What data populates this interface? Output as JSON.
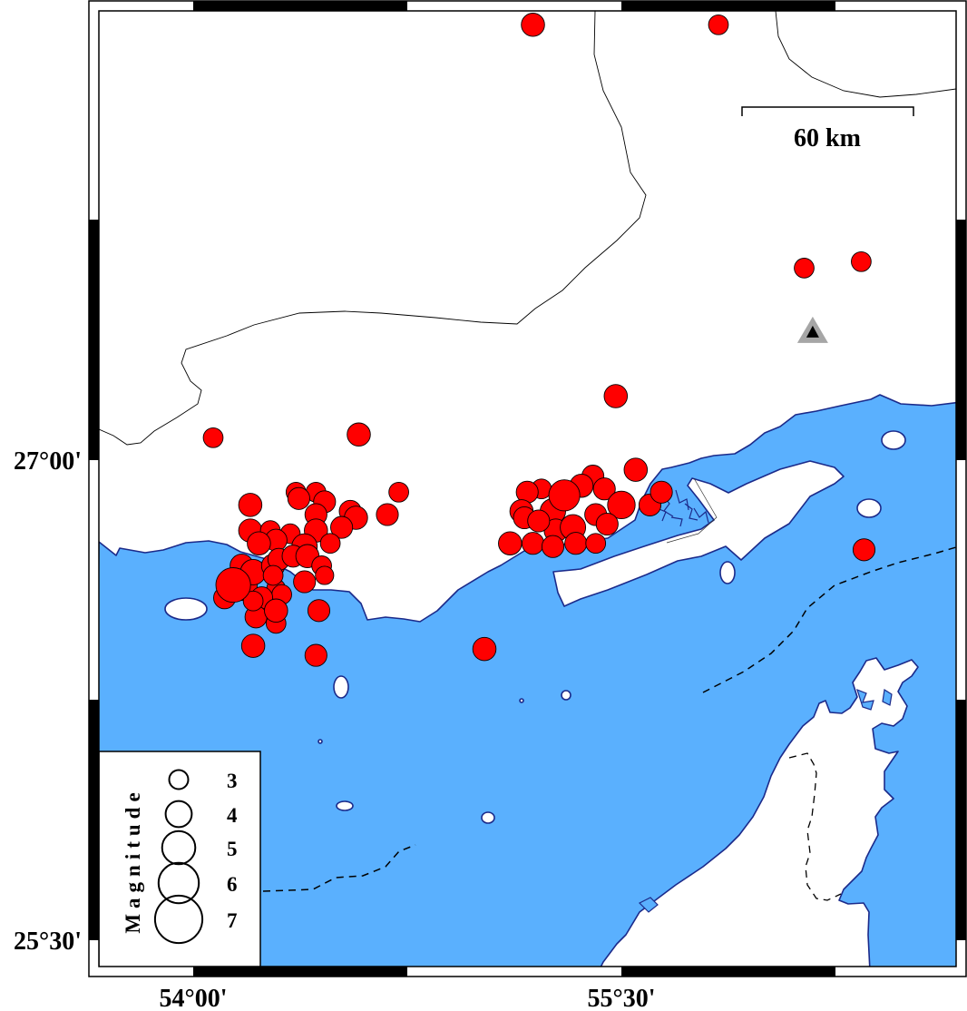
{
  "map": {
    "sea_color": "#5ab0fe",
    "land_color": "#ffffff",
    "coastline_color": "#1b2a8a",
    "event_color": "#ff0000"
  },
  "axes": {
    "x_ticks": [
      {
        "label": "54°00'",
        "lon": 54.0
      },
      {
        "label": "55°30'",
        "lon": 55.5
      }
    ],
    "y_ticks": [
      {
        "label": "27°00'",
        "lat": 27.0
      },
      {
        "label": "25°30'",
        "lat": 25.5
      }
    ]
  },
  "scale_bar": {
    "label": "60 km"
  },
  "legend": {
    "title": "Magnitude",
    "items": [
      {
        "mag": 3,
        "label": "3"
      },
      {
        "mag": 4,
        "label": "4"
      },
      {
        "mag": 5,
        "label": "5"
      },
      {
        "mag": 6,
        "label": "6"
      },
      {
        "mag": 7,
        "label": "7"
      }
    ]
  },
  "station": {
    "lon": 56.17,
    "lat": 27.4,
    "icon": "triangle-icon"
  },
  "events": [
    {
      "lon": 54.2,
      "lat": 26.86,
      "mag": 3.6
    },
    {
      "lon": 54.36,
      "lat": 26.9,
      "mag": 3.1
    },
    {
      "lon": 54.43,
      "lat": 26.9,
      "mag": 3.1
    },
    {
      "lon": 54.37,
      "lat": 26.88,
      "mag": 3.4
    },
    {
      "lon": 54.46,
      "lat": 26.87,
      "mag": 3.4
    },
    {
      "lon": 54.43,
      "lat": 26.83,
      "mag": 3.4
    },
    {
      "lon": 54.55,
      "lat": 26.84,
      "mag": 3.4
    },
    {
      "lon": 54.57,
      "lat": 26.82,
      "mag": 3.6
    },
    {
      "lon": 54.68,
      "lat": 26.83,
      "mag": 3.4
    },
    {
      "lon": 54.72,
      "lat": 26.9,
      "mag": 3.1
    },
    {
      "lon": 54.2,
      "lat": 26.78,
      "mag": 3.6
    },
    {
      "lon": 54.27,
      "lat": 26.78,
      "mag": 3.1
    },
    {
      "lon": 54.34,
      "lat": 26.77,
      "mag": 3.1
    },
    {
      "lon": 54.43,
      "lat": 26.78,
      "mag": 3.6
    },
    {
      "lon": 54.52,
      "lat": 26.79,
      "mag": 3.4
    },
    {
      "lon": 54.48,
      "lat": 26.74,
      "mag": 3.1
    },
    {
      "lon": 54.39,
      "lat": 26.73,
      "mag": 3.9
    },
    {
      "lon": 54.29,
      "lat": 26.75,
      "mag": 3.4
    },
    {
      "lon": 54.23,
      "lat": 26.74,
      "mag": 3.6
    },
    {
      "lon": 54.17,
      "lat": 26.67,
      "mag": 3.6
    },
    {
      "lon": 54.17,
      "lat": 26.61,
      "mag": 4.7
    },
    {
      "lon": 54.11,
      "lat": 26.57,
      "mag": 3.4
    },
    {
      "lon": 54.21,
      "lat": 26.65,
      "mag": 3.9
    },
    {
      "lon": 54.28,
      "lat": 26.67,
      "mag": 3.6
    },
    {
      "lon": 54.3,
      "lat": 26.69,
      "mag": 3.4
    },
    {
      "lon": 54.35,
      "lat": 26.7,
      "mag": 3.4
    },
    {
      "lon": 54.4,
      "lat": 26.7,
      "mag": 3.6
    },
    {
      "lon": 54.45,
      "lat": 26.67,
      "mag": 3.1
    },
    {
      "lon": 54.46,
      "lat": 26.64,
      "mag": 2.9
    },
    {
      "lon": 54.39,
      "lat": 26.62,
      "mag": 3.4
    },
    {
      "lon": 54.29,
      "lat": 26.6,
      "mag": 2.9
    },
    {
      "lon": 54.31,
      "lat": 26.58,
      "mag": 3.1
    },
    {
      "lon": 54.24,
      "lat": 26.57,
      "mag": 3.4
    },
    {
      "lon": 54.22,
      "lat": 26.51,
      "mag": 3.4
    },
    {
      "lon": 54.29,
      "lat": 26.49,
      "mag": 3.1
    },
    {
      "lon": 54.29,
      "lat": 26.53,
      "mag": 3.6
    },
    {
      "lon": 54.21,
      "lat": 26.56,
      "mag": 3.1
    },
    {
      "lon": 54.44,
      "lat": 26.53,
      "mag": 3.4
    },
    {
      "lon": 54.21,
      "lat": 26.42,
      "mag": 3.6
    },
    {
      "lon": 54.43,
      "lat": 26.39,
      "mag": 3.4
    },
    {
      "lon": 54.28,
      "lat": 26.64,
      "mag": 3.1
    },
    {
      "lon": 54.14,
      "lat": 26.61,
      "mag": 5.2
    },
    {
      "lon": 55.55,
      "lat": 26.97,
      "mag": 3.6
    },
    {
      "lon": 55.4,
      "lat": 26.95,
      "mag": 3.4
    },
    {
      "lon": 55.36,
      "lat": 26.92,
      "mag": 3.6
    },
    {
      "lon": 55.44,
      "lat": 26.91,
      "mag": 3.4
    },
    {
      "lon": 55.22,
      "lat": 26.91,
      "mag": 3.1
    },
    {
      "lon": 55.17,
      "lat": 26.9,
      "mag": 3.4
    },
    {
      "lon": 55.15,
      "lat": 26.84,
      "mag": 3.6
    },
    {
      "lon": 55.16,
      "lat": 26.82,
      "mag": 3.4
    },
    {
      "lon": 55.26,
      "lat": 26.84,
      "mag": 3.9
    },
    {
      "lon": 55.5,
      "lat": 26.86,
      "mag": 4.2
    },
    {
      "lon": 55.6,
      "lat": 26.86,
      "mag": 3.4
    },
    {
      "lon": 55.64,
      "lat": 26.9,
      "mag": 3.4
    },
    {
      "lon": 55.41,
      "lat": 26.83,
      "mag": 3.4
    },
    {
      "lon": 55.45,
      "lat": 26.8,
      "mag": 3.4
    },
    {
      "lon": 55.27,
      "lat": 26.78,
      "mag": 3.6
    },
    {
      "lon": 55.33,
      "lat": 26.79,
      "mag": 3.9
    },
    {
      "lon": 55.11,
      "lat": 26.74,
      "mag": 3.6
    },
    {
      "lon": 55.19,
      "lat": 26.74,
      "mag": 3.4
    },
    {
      "lon": 55.26,
      "lat": 26.73,
      "mag": 3.4
    },
    {
      "lon": 55.34,
      "lat": 26.74,
      "mag": 3.4
    },
    {
      "lon": 55.41,
      "lat": 26.74,
      "mag": 3.1
    },
    {
      "lon": 55.21,
      "lat": 26.81,
      "mag": 3.4
    },
    {
      "lon": 55.3,
      "lat": 26.89,
      "mag": 4.7
    },
    {
      "lon": 55.19,
      "lat": 28.36,
      "mag": 3.6
    },
    {
      "lon": 55.84,
      "lat": 28.36,
      "mag": 3.1
    },
    {
      "lon": 56.14,
      "lat": 27.6,
      "mag": 3.1
    },
    {
      "lon": 56.34,
      "lat": 27.62,
      "mag": 3.1
    },
    {
      "lon": 55.48,
      "lat": 27.2,
      "mag": 3.6
    },
    {
      "lon": 54.58,
      "lat": 27.08,
      "mag": 3.6
    },
    {
      "lon": 54.07,
      "lat": 27.07,
      "mag": 3.1
    },
    {
      "lon": 55.02,
      "lat": 26.41,
      "mag": 3.6
    },
    {
      "lon": 56.35,
      "lat": 26.72,
      "mag": 3.4
    }
  ]
}
